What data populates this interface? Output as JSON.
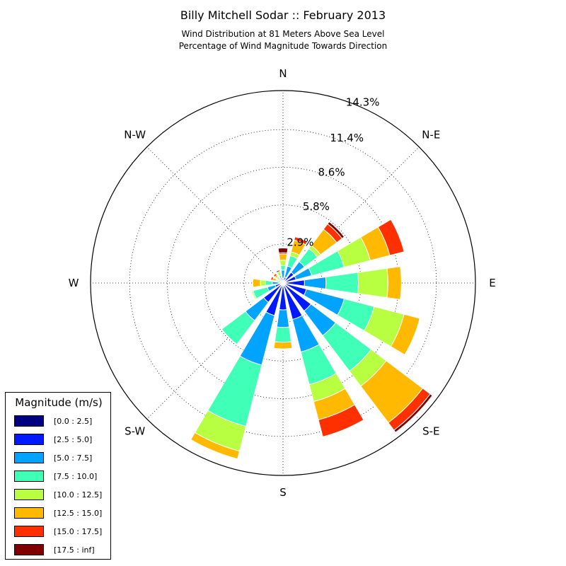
{
  "title": "Billy Mitchell Sodar :: February 2013",
  "subtitle_lines": [
    "Wind Distribution at 81 Meters Above Sea Level",
    "Percentage of Wind Magnitude Towards Direction"
  ],
  "chart_data": {
    "type": "windrose",
    "title": "Billy Mitchell Sodar :: February 2013",
    "subtitle": [
      "Wind Distribution at 81 Meters Above Sea Level",
      "Percentage of Wind Magnitude Towards Direction"
    ],
    "directions": [
      "N",
      "N-E",
      "E",
      "S-E",
      "S",
      "S-W",
      "W",
      "N-W"
    ],
    "radial_ticks": [
      "2.9%",
      "5.8%",
      "8.6%",
      "11.4%",
      "14.3%"
    ],
    "radial_tick_values": [
      2.9,
      5.8,
      8.6,
      11.4,
      14.3
    ],
    "rmax": 14.3,
    "sector_width_deg": 16,
    "legend_title": "Magnitude (m/s)",
    "bins": [
      {
        "label": "[0.0 : 2.5]",
        "color": "#000080"
      },
      {
        "label": "[2.5 : 5.0]",
        "color": "#0019ff"
      },
      {
        "label": "[5.0 : 7.5]",
        "color": "#00a4ff"
      },
      {
        "label": "[7.5 : 10.0]",
        "color": "#40ffb7"
      },
      {
        "label": "[10.0 : 12.5]",
        "color": "#b7ff40"
      },
      {
        "label": "[12.5 : 15.0]",
        "color": "#ffb900"
      },
      {
        "label": "[15.0 : 17.5]",
        "color": "#ff3000"
      },
      {
        "label": "[17.5 : inf]",
        "color": "#800000"
      }
    ],
    "sectors": [
      {
        "bearing": 0,
        "cumulative": [
          0.05,
          0.35,
          0.95,
          1.3,
          1.7,
          2.15,
          2.25,
          2.6
        ]
      },
      {
        "bearing": 22.5,
        "cumulative": [
          0.05,
          0.45,
          1.3,
          2.1,
          2.4,
          3.3,
          3.55,
          3.55
        ]
      },
      {
        "bearing": 45,
        "cumulative": [
          0.05,
          1.0,
          2.0,
          3.2,
          3.5,
          5.0,
          5.5,
          5.7
        ]
      },
      {
        "bearing": 67.5,
        "cumulative": [
          0.05,
          1.0,
          2.2,
          4.7,
          6.7,
          8.2,
          9.3,
          9.3
        ]
      },
      {
        "bearing": 90,
        "cumulative": [
          0.05,
          1.6,
          3.2,
          5.6,
          7.8,
          8.8,
          8.8,
          8.8
        ]
      },
      {
        "bearing": 112.5,
        "cumulative": [
          0.05,
          1.8,
          4.7,
          7.0,
          9.3,
          10.5,
          10.5,
          10.5
        ]
      },
      {
        "bearing": 135,
        "cumulative": [
          0.05,
          2.6,
          4.9,
          8.2,
          9.6,
          13.0,
          13.7,
          13.9
        ]
      },
      {
        "bearing": 157.5,
        "cumulative": [
          0.05,
          2.8,
          5.3,
          7.8,
          9.1,
          10.5,
          11.8,
          11.8
        ]
      },
      {
        "bearing": 180,
        "cumulative": [
          0.05,
          2.0,
          3.3,
          4.4,
          4.4,
          4.9,
          4.9,
          4.9
        ]
      },
      {
        "bearing": 202.5,
        "cumulative": [
          0.05,
          2.5,
          6.3,
          11.0,
          12.9,
          13.5,
          13.5,
          13.5
        ]
      },
      {
        "bearing": 225,
        "cumulative": [
          0.05,
          1.8,
          3.5,
          5.7,
          5.7,
          5.7,
          5.7,
          5.7
        ]
      },
      {
        "bearing": 247.5,
        "cumulative": [
          0.05,
          0.6,
          1.2,
          2.3,
          2.4,
          2.45,
          2.45,
          2.45
        ]
      },
      {
        "bearing": 270,
        "cumulative": [
          0.05,
          0.3,
          0.8,
          1.3,
          1.7,
          2.25,
          2.25,
          2.25
        ]
      },
      {
        "bearing": 292.5,
        "cumulative": [
          0.0,
          0.1,
          0.2,
          0.4,
          0.55,
          0.8,
          0.95,
          1.0
        ]
      },
      {
        "bearing": 315,
        "cumulative": [
          0.0,
          0.1,
          0.2,
          0.4,
          0.6,
          0.75,
          0.9,
          0.95
        ]
      },
      {
        "bearing": 337.5,
        "cumulative": [
          0.05,
          0.2,
          0.4,
          0.6,
          0.9,
          0.9,
          0.9,
          1.0
        ]
      }
    ]
  }
}
